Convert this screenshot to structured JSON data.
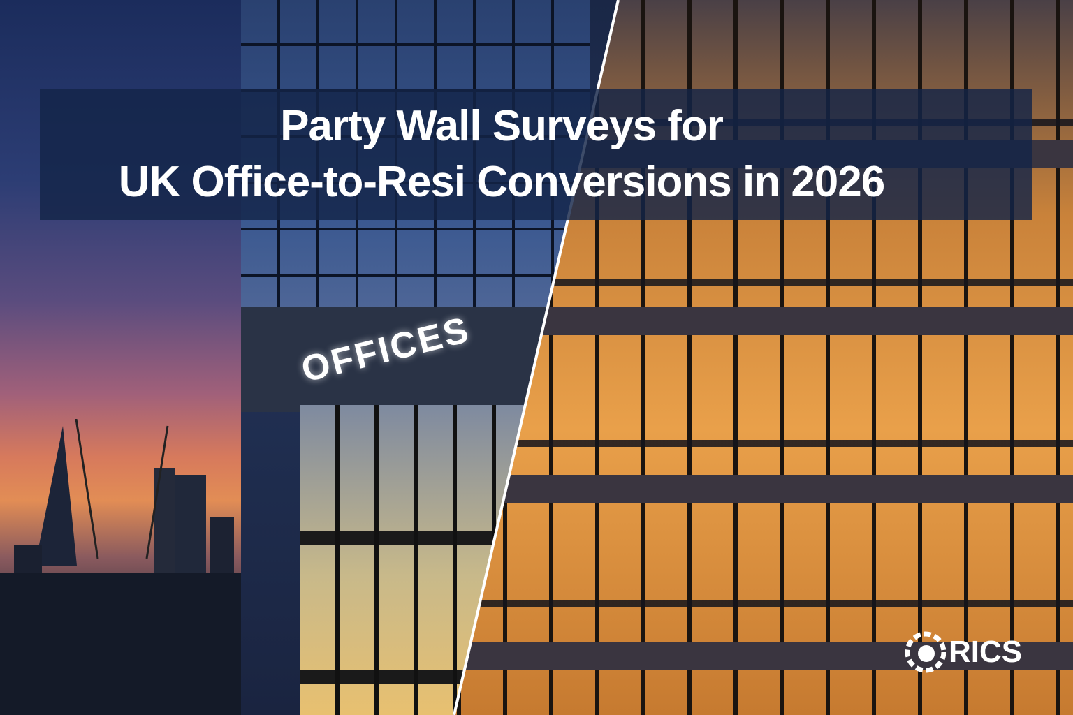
{
  "title": {
    "line1": "Party Wall Surveys for",
    "line2": "UK Office-to-Resi Conversions in 2026"
  },
  "building_sign": "OFFICES",
  "logo": {
    "text": "RICS",
    "icon": "lion-icon"
  },
  "colors": {
    "title_band": "#142448",
    "sky_top": "#1b2c5c",
    "sunset": "#e28d55",
    "warm_windows": "#e9a04a"
  }
}
